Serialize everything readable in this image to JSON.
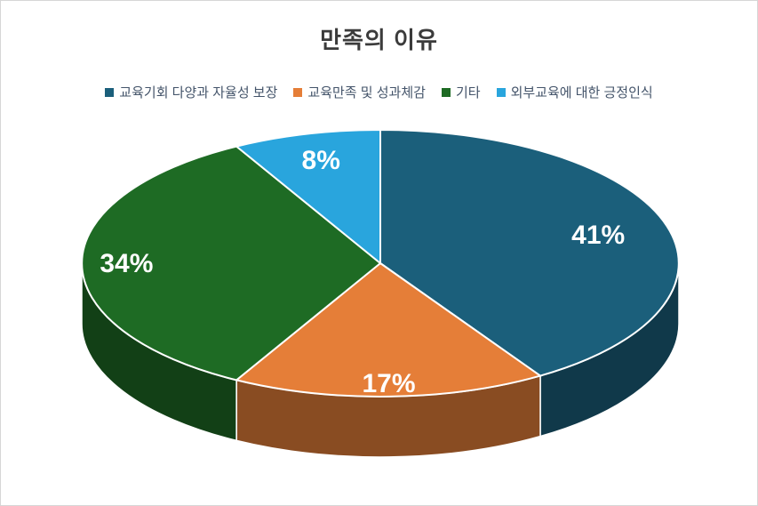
{
  "title": "만족의 이유",
  "legend": {
    "position": "top",
    "items": [
      {
        "label": "교육기회 다양과 자율성 보장",
        "color": "#1B5F7B"
      },
      {
        "label": "교육만족 및 성과체감",
        "color": "#E57E38"
      },
      {
        "label": "기타",
        "color": "#1E6B24"
      },
      {
        "label": "외부교육에 대한 긍정인식",
        "color": "#29A5DD"
      }
    ]
  },
  "chart_data": {
    "type": "pie",
    "title": "만족의 이유",
    "categories": [
      "교육기회 다양과 자율성 보장",
      "교육만족 및 성과체감",
      "기타",
      "외부교육에 대한 긍정인식"
    ],
    "values": [
      41,
      17,
      34,
      8
    ],
    "data_labels": [
      "41%",
      "17%",
      "34%",
      "8%"
    ],
    "colors": [
      "#1B5F7B",
      "#E57E38",
      "#1E6B24",
      "#29A5DD"
    ],
    "start_angle_deg": -90,
    "direction": "clockwise",
    "effect": "3d",
    "legend_position": "top",
    "label_radius": [
      0.76,
      0.9,
      0.85,
      0.8
    ],
    "label_color": "#FFFFFF",
    "background": "#FFFFFF",
    "border_color": "#D6D6D6"
  }
}
